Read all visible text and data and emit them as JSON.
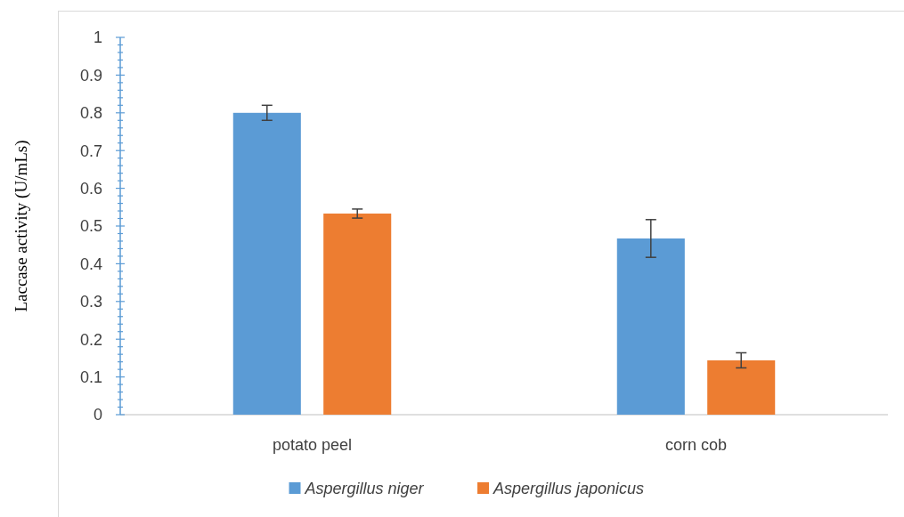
{
  "chart_data": {
    "type": "bar",
    "ylabel": "Laccase activity (U/mLs)",
    "categories": [
      "potato peel",
      "corn cob"
    ],
    "series": [
      {
        "name": "Aspergillus niger",
        "color": "#5b9bd5",
        "values": [
          0.8,
          0.467
        ],
        "errors": [
          0.02,
          0.05
        ]
      },
      {
        "name": "Aspergillus japonicus",
        "color": "#ed7d31",
        "values": [
          0.533,
          0.144
        ],
        "errors": [
          0.012,
          0.02
        ]
      }
    ],
    "ylim": [
      0,
      1
    ],
    "yticks": [
      0,
      {
        "value": 0.02,
        "label": null
      },
      {
        "value": 0.04,
        "label": null
      },
      {
        "value": 0.06,
        "label": null
      },
      {
        "value": 0.08,
        "label": null
      },
      0.1,
      {
        "value": 0.12,
        "label": null
      },
      {
        "value": 0.14,
        "label": null
      },
      {
        "value": 0.16,
        "label": null
      },
      {
        "value": 0.18,
        "label": null
      },
      0.2,
      {
        "value": 0.22,
        "label": null
      },
      {
        "value": 0.24,
        "label": null
      },
      {
        "value": 0.26,
        "label": null
      },
      {
        "value": 0.28,
        "label": null
      },
      0.3,
      {
        "value": 0.32,
        "label": null
      },
      {
        "value": 0.34,
        "label": null
      },
      {
        "value": 0.36,
        "label": null
      },
      {
        "value": 0.38,
        "label": null
      },
      0.4,
      {
        "value": 0.42,
        "label": null
      },
      {
        "value": 0.44,
        "label": null
      },
      {
        "value": 0.46,
        "label": null
      },
      {
        "value": 0.48,
        "label": null
      },
      0.5,
      {
        "value": 0.52,
        "label": null
      },
      {
        "value": 0.54,
        "label": null
      },
      {
        "value": 0.56,
        "label": null
      },
      {
        "value": 0.58,
        "label": null
      },
      0.6,
      {
        "value": 0.62,
        "label": null
      },
      {
        "value": 0.64,
        "label": null
      },
      {
        "value": 0.66,
        "label": null
      },
      {
        "value": 0.68,
        "label": null
      },
      0.7,
      {
        "value": 0.72,
        "label": null
      },
      {
        "value": 0.74,
        "label": null
      },
      {
        "value": 0.76,
        "label": null
      },
      {
        "value": 0.78,
        "label": null
      },
      0.8,
      {
        "value": 0.82,
        "label": null
      },
      {
        "value": 0.84,
        "label": null
      },
      {
        "value": 0.86,
        "label": null
      },
      {
        "value": 0.88,
        "label": null
      },
      0.9,
      {
        "value": 0.92,
        "label": null
      },
      {
        "value": 0.94,
        "label": null
      },
      {
        "value": 0.96,
        "label": null
      },
      {
        "value": 0.98,
        "label": null
      },
      1
    ],
    "grid": false,
    "legend": "bottom"
  }
}
